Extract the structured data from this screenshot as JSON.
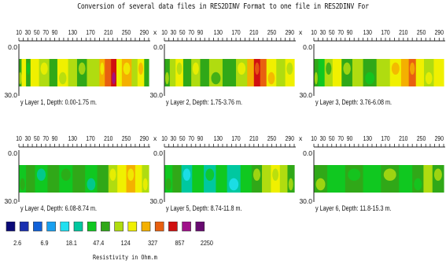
{
  "title": "Conversion of several data files in RES2DINV Format to one file in RES2DINV For",
  "colors": {
    "scale": [
      "#0a0a78",
      "#1a2fb0",
      "#1060d8",
      "#18a0f0",
      "#20e0f0",
      "#00c8a0",
      "#10c820",
      "#30a818",
      "#b0dc10",
      "#f0f000",
      "#f4b000",
      "#e86010",
      "#d01010",
      "#a0108a",
      "#680a70"
    ]
  },
  "legend": {
    "tick_labels": [
      "2.6",
      "6.9",
      "18.1",
      "47.4",
      "124",
      "327",
      "857",
      "2250"
    ],
    "unit_label": "Resistivity in Ohm.m"
  },
  "chart_data": [
    {
      "type": "heatmap",
      "title": "Layer 1, Depth: 0.00-1.75 m.",
      "x_ticks": [
        "10",
        "30",
        "50",
        "70",
        "90",
        "130",
        "170",
        "210",
        "250",
        "290"
      ],
      "x_axis_letter": "x",
      "y_axis_letter": "y",
      "y_range": [
        "0.0",
        "30.0"
      ],
      "segments": [
        [
          10,
          16,
          7
        ],
        [
          16,
          26,
          9
        ],
        [
          26,
          36,
          7
        ],
        [
          36,
          55,
          9
        ],
        [
          55,
          78,
          8
        ],
        [
          78,
          96,
          7
        ],
        [
          96,
          120,
          9
        ],
        [
          120,
          140,
          8
        ],
        [
          140,
          162,
          7
        ],
        [
          162,
          190,
          8
        ],
        [
          190,
          202,
          10
        ],
        [
          202,
          216,
          11
        ],
        [
          216,
          228,
          12
        ],
        [
          228,
          240,
          9
        ],
        [
          240,
          262,
          10
        ],
        [
          262,
          275,
          8
        ],
        [
          275,
          290,
          9
        ],
        [
          290,
          300,
          7
        ]
      ]
    },
    {
      "type": "heatmap",
      "title": "Layer 2, Depth: 1.75-3.76 m.",
      "x_ticks": [
        "10",
        "30",
        "50",
        "70",
        "90",
        "130",
        "170",
        "210",
        "250",
        "290"
      ],
      "x_axis_letter": "x",
      "y_axis_letter": "y",
      "y_range": [
        "0.0",
        "30.0"
      ],
      "segments": [
        [
          10,
          22,
          7
        ],
        [
          22,
          35,
          8
        ],
        [
          35,
          52,
          9
        ],
        [
          52,
          70,
          7
        ],
        [
          70,
          90,
          8
        ],
        [
          90,
          110,
          7
        ],
        [
          110,
          140,
          8
        ],
        [
          140,
          170,
          7
        ],
        [
          170,
          195,
          8
        ],
        [
          195,
          210,
          10
        ],
        [
          210,
          224,
          12
        ],
        [
          224,
          238,
          11
        ],
        [
          238,
          260,
          9
        ],
        [
          260,
          280,
          8
        ],
        [
          280,
          300,
          9
        ]
      ]
    },
    {
      "type": "heatmap",
      "title": "Layer 3, Depth: 3.76-6.08 m.",
      "x_ticks": [
        "10",
        "30",
        "50",
        "70",
        "90",
        "130",
        "170",
        "210",
        "250",
        "290"
      ],
      "x_axis_letter": "x",
      "y_axis_letter": "y",
      "y_range": [
        "0.0",
        "30.0"
      ],
      "segments": [
        [
          10,
          20,
          7
        ],
        [
          20,
          34,
          6
        ],
        [
          34,
          52,
          8
        ],
        [
          52,
          72,
          9
        ],
        [
          72,
          96,
          7
        ],
        [
          96,
          120,
          8
        ],
        [
          120,
          150,
          7
        ],
        [
          150,
          180,
          8
        ],
        [
          180,
          205,
          9
        ],
        [
          205,
          222,
          10
        ],
        [
          222,
          238,
          11
        ],
        [
          238,
          256,
          9
        ],
        [
          256,
          278,
          8
        ],
        [
          278,
          300,
          9
        ]
      ]
    },
    {
      "type": "heatmap",
      "title": "Layer 4, Depth: 6.08-8.74 m.",
      "x_ticks": [
        "10",
        "30",
        "50",
        "70",
        "90",
        "130",
        "170",
        "210",
        "250",
        "290"
      ],
      "x_axis_letter": "x",
      "y_axis_letter": "y",
      "y_range": [
        "0.0",
        "30.0"
      ],
      "segments": [
        [
          10,
          26,
          6
        ],
        [
          26,
          46,
          7
        ],
        [
          46,
          74,
          6
        ],
        [
          74,
          100,
          7
        ],
        [
          100,
          130,
          6
        ],
        [
          130,
          158,
          7
        ],
        [
          158,
          185,
          6
        ],
        [
          185,
          210,
          7
        ],
        [
          210,
          230,
          8
        ],
        [
          230,
          250,
          9
        ],
        [
          250,
          270,
          10
        ],
        [
          270,
          285,
          9
        ],
        [
          285,
          300,
          8
        ]
      ]
    },
    {
      "type": "heatmap",
      "title": "Layer 5, Depth: 8.74-11.8 m.",
      "x_ticks": [
        "10",
        "30",
        "50",
        "70",
        "90",
        "130",
        "170",
        "210",
        "250",
        "290"
      ],
      "x_axis_letter": "x",
      "y_axis_letter": "y",
      "y_range": [
        "0.0",
        "30.0"
      ],
      "segments": [
        [
          10,
          28,
          6
        ],
        [
          28,
          48,
          7
        ],
        [
          48,
          72,
          5
        ],
        [
          72,
          98,
          6
        ],
        [
          98,
          125,
          5
        ],
        [
          125,
          150,
          6
        ],
        [
          150,
          180,
          5
        ],
        [
          180,
          205,
          6
        ],
        [
          205,
          228,
          7
        ],
        [
          228,
          248,
          8
        ],
        [
          248,
          268,
          9
        ],
        [
          268,
          285,
          8
        ],
        [
          285,
          300,
          7
        ]
      ]
    },
    {
      "type": "heatmap",
      "title": "Layer 6, Depth: 11.8-15.3 m.",
      "x_ticks": [
        "10",
        "30",
        "50",
        "70",
        "90",
        "130",
        "170",
        "210",
        "250",
        "290"
      ],
      "x_axis_letter": "x",
      "y_axis_letter": "y",
      "y_range": [
        "0.0",
        "30.0"
      ],
      "segments": [
        [
          10,
          40,
          7
        ],
        [
          40,
          80,
          6
        ],
        [
          80,
          120,
          7
        ],
        [
          120,
          160,
          6
        ],
        [
          160,
          200,
          7
        ],
        [
          200,
          230,
          6
        ],
        [
          230,
          255,
          7
        ],
        [
          255,
          275,
          8
        ],
        [
          275,
          300,
          7
        ]
      ]
    }
  ]
}
